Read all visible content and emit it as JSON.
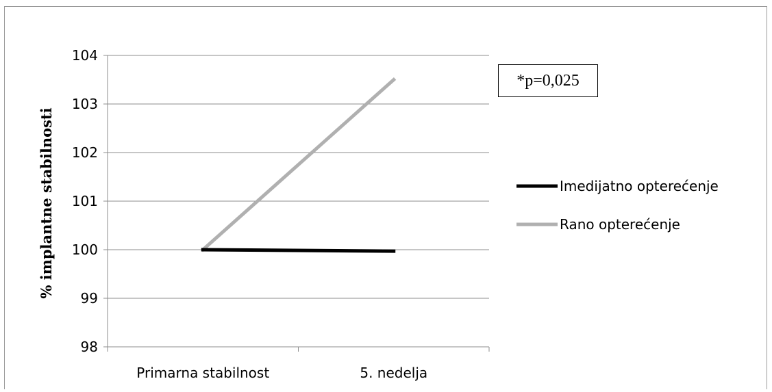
{
  "chart_data": {
    "type": "line",
    "categories": [
      "Primarna stabilnost",
      "5. nedelja"
    ],
    "series": [
      {
        "name": "Imedijatno opterećenje",
        "values": [
          100,
          99.97
        ],
        "color": "#000000"
      },
      {
        "name": "Rano opterećenje",
        "values": [
          100,
          103.5
        ],
        "color": "#b0b0b0"
      }
    ],
    "ylabel": "% implantne stabilnosti",
    "xlabel": "",
    "ylim": [
      98,
      104
    ],
    "yticks": [
      98,
      99,
      100,
      101,
      102,
      103,
      104
    ],
    "grid": true,
    "legend_position": "right",
    "annotation": "*p=0,025"
  }
}
